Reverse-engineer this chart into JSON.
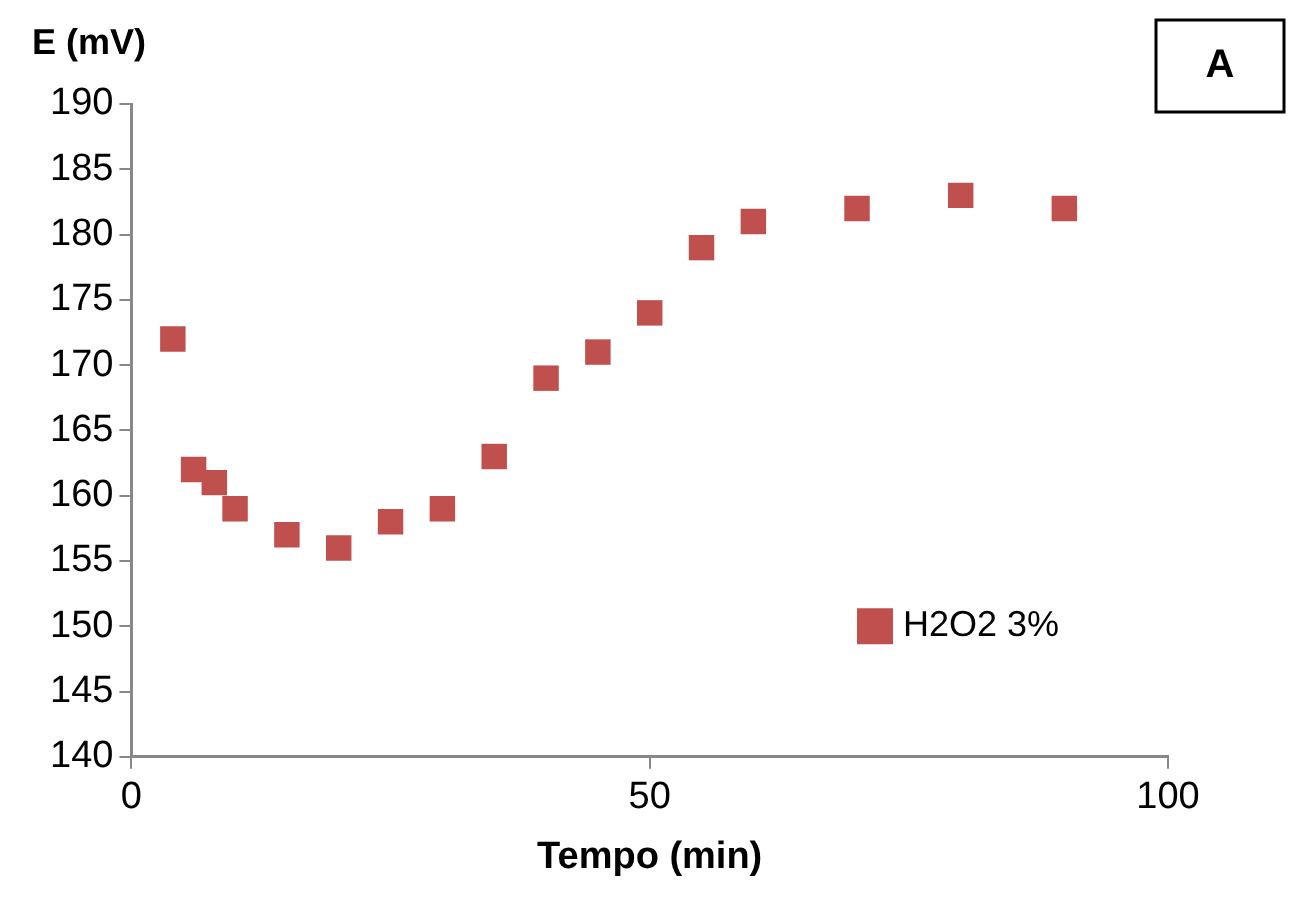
{
  "chart_data": {
    "type": "scatter",
    "xlabel": "Tempo (min)",
    "ylabel": "E (mV)",
    "annotations": [
      "A"
    ],
    "series": [
      {
        "name": "H2O2 3%",
        "color": "#c0504d",
        "x": [
          4,
          6,
          8,
          10,
          15,
          20,
          25,
          30,
          35,
          40,
          45,
          50,
          55,
          60,
          70,
          80,
          90
        ],
        "values": [
          172,
          162,
          161,
          159,
          157,
          156,
          158,
          159,
          163,
          169,
          171,
          174,
          179,
          181,
          182,
          183,
          182
        ]
      }
    ],
    "xlim": [
      0,
      100
    ],
    "xticks": [
      0,
      50,
      100
    ],
    "ylim": [
      140,
      190
    ],
    "yticks": [
      140,
      145,
      150,
      155,
      160,
      165,
      170,
      175,
      180,
      185,
      190
    ],
    "grid": false,
    "legend": "bottom right",
    "marker": "square"
  }
}
